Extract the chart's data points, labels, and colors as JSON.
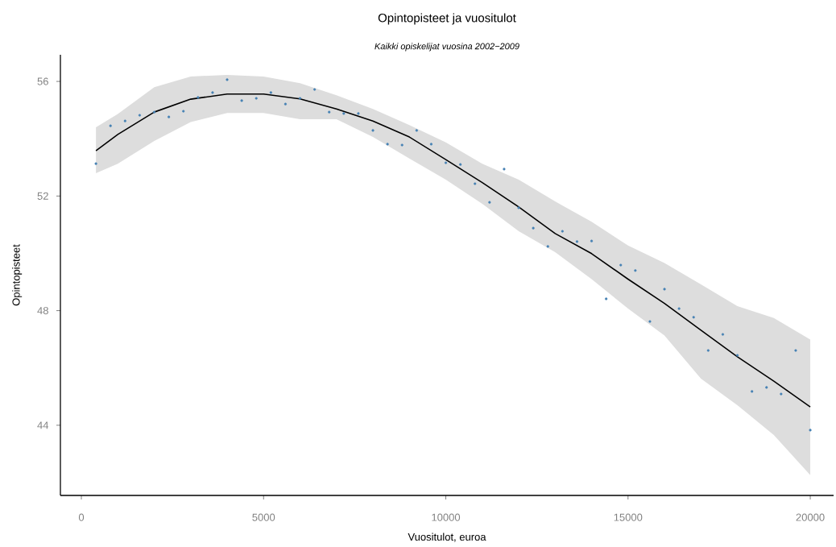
{
  "chart_data": {
    "type": "scatter",
    "title": "Opintopisteet ja vuositulot",
    "subtitle": "Kaikki opiskelijat vuosina 2002−2009",
    "xlabel": "Vuositulot, euroa",
    "ylabel": "Opintopisteet",
    "xlim": [
      -575,
      20640
    ],
    "ylim": [
      41.55,
      56.93
    ],
    "xticks": [
      0,
      5000,
      10000,
      15000,
      20000
    ],
    "yticks": [
      44,
      48,
      52,
      56
    ],
    "grid": false,
    "series": [
      {
        "type": "scatter",
        "color": "#4682b4",
        "marker": "circle",
        "x": [
          400,
          800,
          1200,
          1600,
          2000,
          2400,
          2800,
          3200,
          3600,
          4000,
          4400,
          4800,
          5200,
          5600,
          6000,
          6400,
          6800,
          7200,
          7600,
          8000,
          8400,
          8800,
          9200,
          9600,
          10000,
          10400,
          10800,
          11200,
          11600,
          12000,
          12400,
          12800,
          13200,
          13600,
          14000,
          14400,
          14800,
          15200,
          15600,
          16000,
          16400,
          16800,
          17200,
          17600,
          18000,
          18400,
          18800,
          19200,
          19600,
          20000
        ],
        "values": [
          53.13,
          54.45,
          54.62,
          54.82,
          54.93,
          54.76,
          54.96,
          55.44,
          55.61,
          56.06,
          55.33,
          55.41,
          55.61,
          55.21,
          55.41,
          55.72,
          54.93,
          54.88,
          54.88,
          54.29,
          53.81,
          53.78,
          54.29,
          53.81,
          53.16,
          53.1,
          52.43,
          51.78,
          52.94,
          51.59,
          50.88,
          50.24,
          50.77,
          50.41,
          50.43,
          48.41,
          49.59,
          49.4,
          47.62,
          48.75,
          48.07,
          47.77,
          46.61,
          47.17,
          46.44,
          45.18,
          45.32,
          45.09,
          46.61,
          43.83
        ]
      },
      {
        "type": "line",
        "color": "#000000",
        "marker": "none",
        "line_style": "solid",
        "x": [
          400,
          1000,
          2000,
          3000,
          4000,
          5000,
          6000,
          7000,
          8000,
          9000,
          10000,
          11000,
          12000,
          13000,
          14000,
          15000,
          16000,
          17000,
          18000,
          19000,
          20000
        ],
        "values": [
          53.58,
          54.15,
          54.93,
          55.38,
          55.56,
          55.56,
          55.39,
          55.04,
          54.62,
          54.06,
          53.27,
          52.47,
          51.62,
          50.69,
          49.99,
          49.1,
          48.25,
          47.32,
          46.39,
          45.54,
          44.64
        ],
        "upper": [
          54.4,
          54.86,
          55.8,
          56.17,
          56.23,
          56.17,
          55.94,
          55.52,
          55.04,
          54.48,
          53.87,
          53.13,
          52.57,
          51.81,
          51.1,
          50.27,
          49.66,
          48.92,
          48.16,
          47.74,
          46.99
        ],
        "lower": [
          52.8,
          53.13,
          53.92,
          54.58,
          54.9,
          54.9,
          54.68,
          54.68,
          54.06,
          53.31,
          52.57,
          51.73,
          50.77,
          50.04,
          49.1,
          48.07,
          47.13,
          45.63,
          44.7,
          43.66,
          42.26
        ]
      }
    ]
  }
}
